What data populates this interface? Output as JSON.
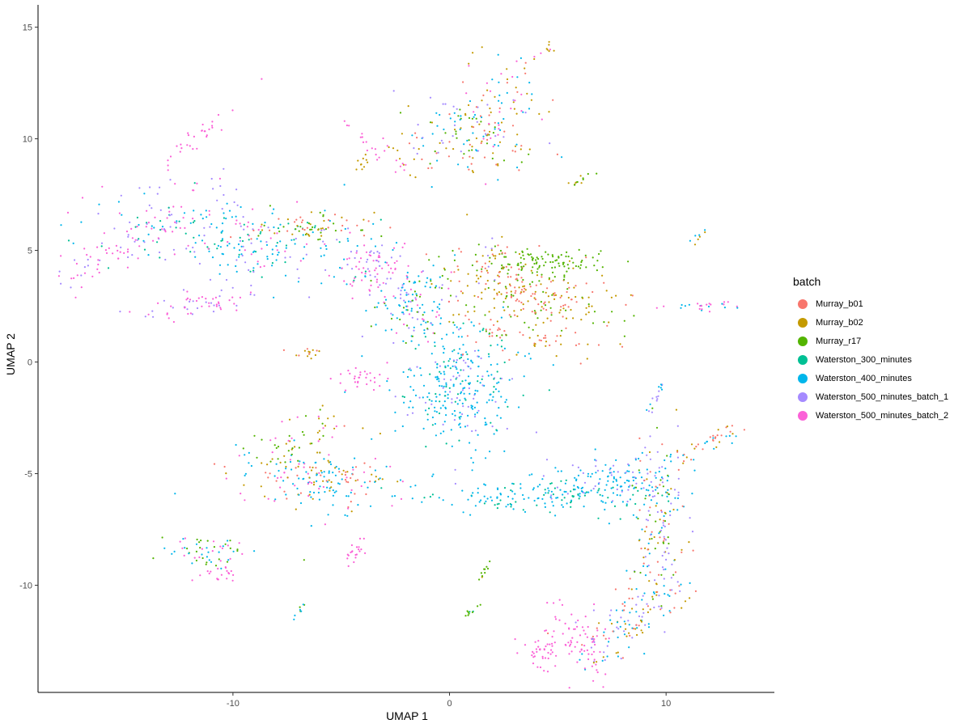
{
  "chart_data": {
    "type": "scatter",
    "xlabel": "UMAP 1",
    "ylabel": "UMAP 2",
    "xlim": [
      -19,
      15
    ],
    "ylim": [
      -14.8,
      16
    ],
    "x_ticks": [
      -10,
      0,
      10
    ],
    "y_ticks": [
      15,
      10,
      5,
      0,
      -5,
      -10
    ],
    "x_tick_labels": [
      "-10",
      "0",
      "10"
    ],
    "y_tick_labels": [
      "15",
      "10",
      "5",
      "0",
      "-5",
      "-10"
    ],
    "grid": false,
    "legend": {
      "title": "batch",
      "placement": "right",
      "entries": [
        {
          "name": "Murray_b01",
          "color": "#F8766D"
        },
        {
          "name": "Murray_b02",
          "color": "#C49A00"
        },
        {
          "name": "Murray_r17",
          "color": "#53B400"
        },
        {
          "name": "Waterston_300_minutes",
          "color": "#00C094"
        },
        {
          "name": "Waterston_400_minutes",
          "color": "#00B6EB"
        },
        {
          "name": "Waterston_500_minutes_batch_1",
          "color": "#A58AFF"
        },
        {
          "name": "Waterston_500_minutes_batch_2",
          "color": "#FB61D7"
        }
      ]
    },
    "clusters": [
      {
        "x": 0.3,
        "y": -1.2,
        "sx": 1.4,
        "sy": 1.4,
        "rot": 20,
        "n": 320,
        "series": [
          4,
          4,
          4,
          3,
          5
        ]
      },
      {
        "x": -1.8,
        "y": 2.8,
        "sx": 1.1,
        "sy": 0.9,
        "rot": -40,
        "n": 150,
        "series": [
          4,
          5,
          6,
          4,
          2
        ]
      },
      {
        "x": -3.5,
        "y": 4.2,
        "sx": 0.8,
        "sy": 0.6,
        "rot": 0,
        "n": 70,
        "series": [
          6,
          6,
          5
        ]
      },
      {
        "x": 3.6,
        "y": 2.9,
        "sx": 2.2,
        "sy": 0.9,
        "rot": -10,
        "n": 260,
        "series": [
          0,
          1,
          0,
          2,
          1
        ]
      },
      {
        "x": 4.5,
        "y": 4.4,
        "sx": 1.5,
        "sy": 0.35,
        "rot": 0,
        "n": 110,
        "series": [
          2,
          2,
          2
        ]
      },
      {
        "x": -9.5,
        "y": 5.5,
        "sx": 3.2,
        "sy": 0.9,
        "rot": -8,
        "n": 280,
        "series": [
          4,
          3,
          6,
          4,
          5
        ]
      },
      {
        "x": -6.5,
        "y": 6.0,
        "sx": 1.2,
        "sy": 0.35,
        "rot": 0,
        "n": 70,
        "series": [
          2,
          1,
          0
        ]
      },
      {
        "x": -14.5,
        "y": 5.5,
        "sx": 2.3,
        "sy": 0.5,
        "rot": 28,
        "n": 90,
        "series": [
          6,
          6,
          5
        ]
      },
      {
        "x": -11.5,
        "y": 2.6,
        "sx": 1.4,
        "sy": 0.3,
        "rot": 10,
        "n": 60,
        "series": [
          6,
          5
        ]
      },
      {
        "x": 0.8,
        "y": 10.0,
        "sx": 1.6,
        "sy": 1.0,
        "rot": 0,
        "n": 140,
        "series": [
          0,
          1,
          4,
          2,
          5
        ]
      },
      {
        "x": 2.3,
        "y": 11.6,
        "sx": 0.8,
        "sy": 1.3,
        "rot": 0,
        "n": 80,
        "series": [
          0,
          6,
          4,
          1
        ]
      },
      {
        "x": -11.5,
        "y": 10.1,
        "sx": 1.0,
        "sy": 0.2,
        "rot": 40,
        "n": 30,
        "series": [
          6
        ]
      },
      {
        "x": -5.8,
        "y": -5.3,
        "sx": 2.0,
        "sy": 0.7,
        "rot": -5,
        "n": 200,
        "series": [
          4,
          4,
          1,
          0,
          6
        ]
      },
      {
        "x": -7.0,
        "y": -3.5,
        "sx": 1.2,
        "sy": 0.5,
        "rot": 30,
        "n": 60,
        "series": [
          1,
          2,
          6
        ]
      },
      {
        "x": 4.5,
        "y": -6.0,
        "sx": 2.6,
        "sy": 0.4,
        "rot": 0,
        "n": 160,
        "series": [
          4,
          4,
          3
        ]
      },
      {
        "x": 7.5,
        "y": -5.2,
        "sx": 1.6,
        "sy": 0.5,
        "rot": 0,
        "n": 120,
        "series": [
          4,
          5,
          4
        ]
      },
      {
        "x": 9.6,
        "y": -7.5,
        "sx": 0.7,
        "sy": 2.0,
        "rot": 0,
        "n": 180,
        "series": [
          0,
          1,
          4,
          5,
          2
        ]
      },
      {
        "x": 8.3,
        "y": -11.5,
        "sx": 1.4,
        "sy": 0.6,
        "rot": 40,
        "n": 120,
        "series": [
          0,
          1,
          4,
          5
        ]
      },
      {
        "x": 6.0,
        "y": -12.5,
        "sx": 0.6,
        "sy": 0.8,
        "rot": 30,
        "n": 70,
        "series": [
          6
        ]
      },
      {
        "x": 4.3,
        "y": -13.0,
        "sx": 0.5,
        "sy": 0.4,
        "rot": 0,
        "n": 40,
        "series": [
          6
        ]
      },
      {
        "x": -11.0,
        "y": -8.5,
        "sx": 1.0,
        "sy": 0.4,
        "rot": 0,
        "n": 60,
        "series": [
          6,
          4,
          2
        ]
      },
      {
        "x": -10.5,
        "y": -9.5,
        "sx": 0.5,
        "sy": 0.3,
        "rot": 0,
        "n": 20,
        "series": [
          6
        ]
      },
      {
        "x": -4.3,
        "y": -8.5,
        "sx": 0.3,
        "sy": 0.3,
        "rot": 0,
        "n": 20,
        "series": [
          6
        ]
      },
      {
        "x": -4.2,
        "y": -0.7,
        "sx": 0.7,
        "sy": 0.3,
        "rot": 0,
        "n": 30,
        "series": [
          6
        ]
      },
      {
        "x": -6.6,
        "y": 0.4,
        "sx": 0.5,
        "sy": 0.1,
        "rot": 0,
        "n": 15,
        "series": [
          1,
          0
        ]
      },
      {
        "x": 11.7,
        "y": -3.8,
        "sx": 1.2,
        "sy": 0.2,
        "rot": 25,
        "n": 40,
        "series": [
          4,
          1,
          0
        ]
      },
      {
        "x": 11.5,
        "y": 2.5,
        "sx": 0.9,
        "sy": 0.1,
        "rot": 0,
        "n": 25,
        "series": [
          4,
          6
        ]
      },
      {
        "x": 9.5,
        "y": -1.6,
        "sx": 0.5,
        "sy": 0.1,
        "rot": 60,
        "n": 15,
        "series": [
          4,
          5
        ]
      },
      {
        "x": 6.3,
        "y": 8.2,
        "sx": 0.4,
        "sy": 0.08,
        "rot": 15,
        "n": 12,
        "series": [
          1,
          2
        ]
      },
      {
        "x": -2.5,
        "y": 9.2,
        "sx": 0.6,
        "sy": 0.1,
        "rot": -50,
        "n": 15,
        "series": [
          6,
          1
        ]
      },
      {
        "x": -4.0,
        "y": 9.0,
        "sx": 0.3,
        "sy": 0.1,
        "rot": 50,
        "n": 10,
        "series": [
          1
        ]
      },
      {
        "x": 4.5,
        "y": 14.0,
        "sx": 0.4,
        "sy": 0.1,
        "rot": 35,
        "n": 10,
        "series": [
          6,
          1
        ]
      },
      {
        "x": -4.0,
        "y": 10.0,
        "sx": 1.0,
        "sy": 0.1,
        "rot": -45,
        "n": 15,
        "series": [
          6
        ]
      },
      {
        "x": 1.0,
        "y": -11.2,
        "sx": 0.3,
        "sy": 0.08,
        "rot": 30,
        "n": 10,
        "series": [
          2,
          3
        ]
      },
      {
        "x": 1.6,
        "y": -9.4,
        "sx": 0.4,
        "sy": 0.08,
        "rot": 60,
        "n": 10,
        "series": [
          2,
          1
        ]
      },
      {
        "x": 2.4,
        "y": 1.3,
        "sx": 0.5,
        "sy": 0.2,
        "rot": 0,
        "n": 15,
        "series": [
          0,
          2
        ]
      },
      {
        "x": 4.2,
        "y": 1.1,
        "sx": 0.4,
        "sy": 0.3,
        "rot": 0,
        "n": 15,
        "series": [
          0,
          1
        ]
      },
      {
        "x": 1.8,
        "y": 4.5,
        "sx": 0.4,
        "sy": 0.8,
        "rot": 0,
        "n": 30,
        "series": [
          0,
          1,
          5
        ]
      },
      {
        "x": -7.0,
        "y": -11.2,
        "sx": 0.3,
        "sy": 0.08,
        "rot": 45,
        "n": 8,
        "series": [
          4,
          2
        ]
      },
      {
        "x": 11.5,
        "y": 5.6,
        "sx": 0.3,
        "sy": 0.08,
        "rot": 40,
        "n": 8,
        "series": [
          4,
          1
        ]
      }
    ]
  }
}
